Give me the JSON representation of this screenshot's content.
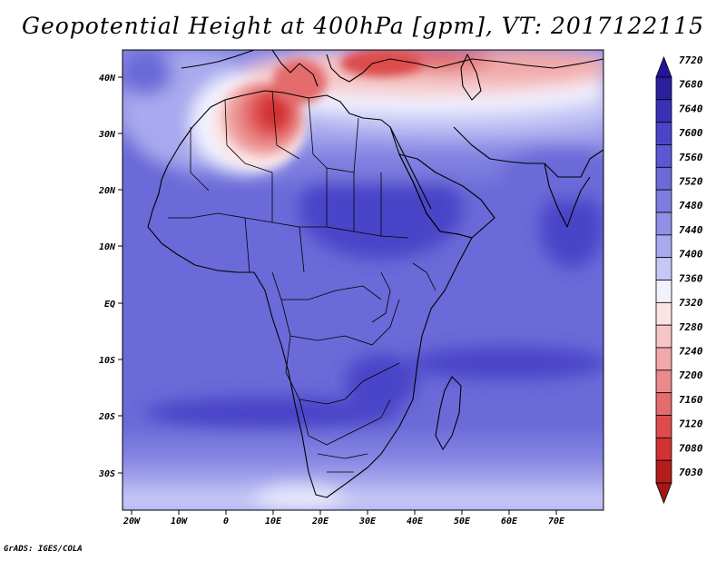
{
  "title": "Geopotential Height at 400hPa [gpm], VT: 2017122115",
  "credit": "GrADS: IGES/COLA",
  "lon_ticks": [
    "20W",
    "10W",
    "0",
    "10E",
    "20E",
    "30E",
    "40E",
    "50E",
    "60E",
    "70E"
  ],
  "lat_ticks": [
    "40N",
    "30N",
    "20N",
    "10N",
    "EQ",
    "10S",
    "20S",
    "30S"
  ],
  "colorbar": {
    "levels": [
      "7720",
      "7680",
      "7640",
      "7600",
      "7560",
      "7520",
      "7480",
      "7440",
      "7400",
      "7360",
      "7320",
      "7280",
      "7240",
      "7200",
      "7160",
      "7120",
      "7080",
      "7030"
    ],
    "colors": [
      "#2a1f9c",
      "#3a30b8",
      "#4a45c8",
      "#5a58d4",
      "#6a6ad8",
      "#7c7ddf",
      "#9090e6",
      "#a8a9ee",
      "#c6c7f5",
      "#f2f2ff",
      "#fbe3e3",
      "#f6c6c6",
      "#f0a8a8",
      "#ea8a8a",
      "#e46c6c",
      "#dd4c4c",
      "#d03232",
      "#b51d1d"
    ],
    "top_arrow_color": "#24159a",
    "bottom_arrow_color": "#a31717"
  }
}
